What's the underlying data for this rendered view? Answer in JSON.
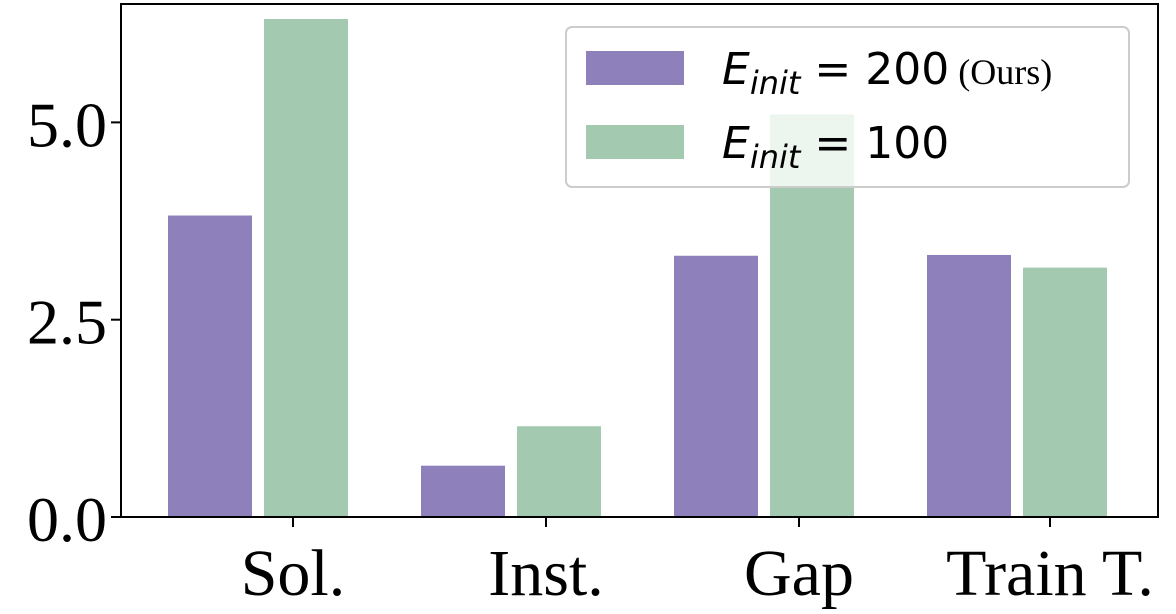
{
  "chart_data": {
    "type": "bar",
    "categories": [
      "Sol.",
      "Inst.",
      "Gap",
      "Train T."
    ],
    "series": [
      {
        "name": "E_init = 200 (Ours)",
        "legend_symbol": "E",
        "legend_subscript": "init",
        "legend_value": " = 200",
        "legend_note": "(Ours)",
        "color": "#8e80bb",
        "values": [
          3.82,
          0.65,
          3.31,
          3.32
        ]
      },
      {
        "name": "E_init = 100",
        "legend_symbol": "E",
        "legend_subscript": "init",
        "legend_value": " = 100",
        "legend_note": "",
        "color": "#a3cab0",
        "values": [
          6.31,
          1.15,
          5.1,
          3.16
        ]
      }
    ],
    "yticks": [
      "0.0",
      "2.5",
      "5.0"
    ],
    "ytick_values": [
      0.0,
      2.5,
      5.0
    ],
    "ylim": [
      0,
      6.5
    ],
    "title": "",
    "xlabel": "",
    "ylabel": "",
    "grid": false,
    "legend_position": "top-right"
  }
}
